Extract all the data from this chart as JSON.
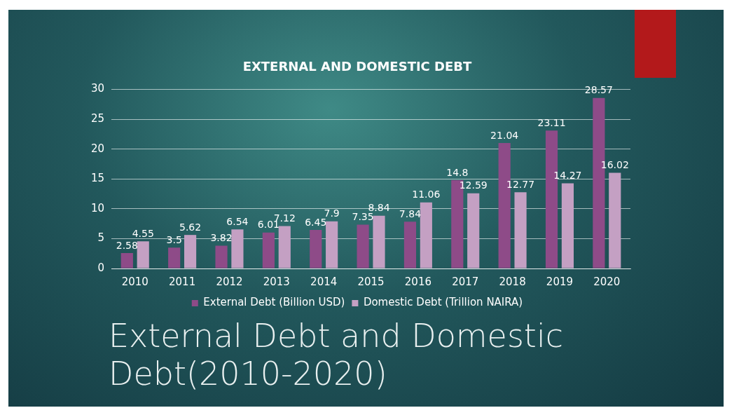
{
  "chart_data": {
    "type": "bar",
    "title": "EXTERNAL AND DOMESTIC DEBT",
    "subtitle": "External Debt and Domestic Debt(2010-2020)",
    "categories": [
      "2010",
      "2011",
      "2012",
      "2013",
      "2014",
      "2015",
      "2016",
      "2017",
      "2018",
      "2019",
      "2020"
    ],
    "series": [
      {
        "name": "External Debt (Billion USD)",
        "color": "#8e4b88",
        "values": [
          2.58,
          3.5,
          3.82,
          6.01,
          6.45,
          7.35,
          7.84,
          14.8,
          21.04,
          23.11,
          28.57
        ]
      },
      {
        "name": "Domestic Debt (Trillion NAIRA)",
        "color": "#c4a0c3",
        "values": [
          4.55,
          5.62,
          6.54,
          7.12,
          7.9,
          8.84,
          11.06,
          12.59,
          12.77,
          14.27,
          16.02
        ]
      }
    ],
    "ylim": [
      0,
      30
    ],
    "yticks": [
      0,
      5,
      10,
      15,
      20,
      25,
      30
    ],
    "grid": "y",
    "legend": "bottom",
    "data_labels": true
  }
}
